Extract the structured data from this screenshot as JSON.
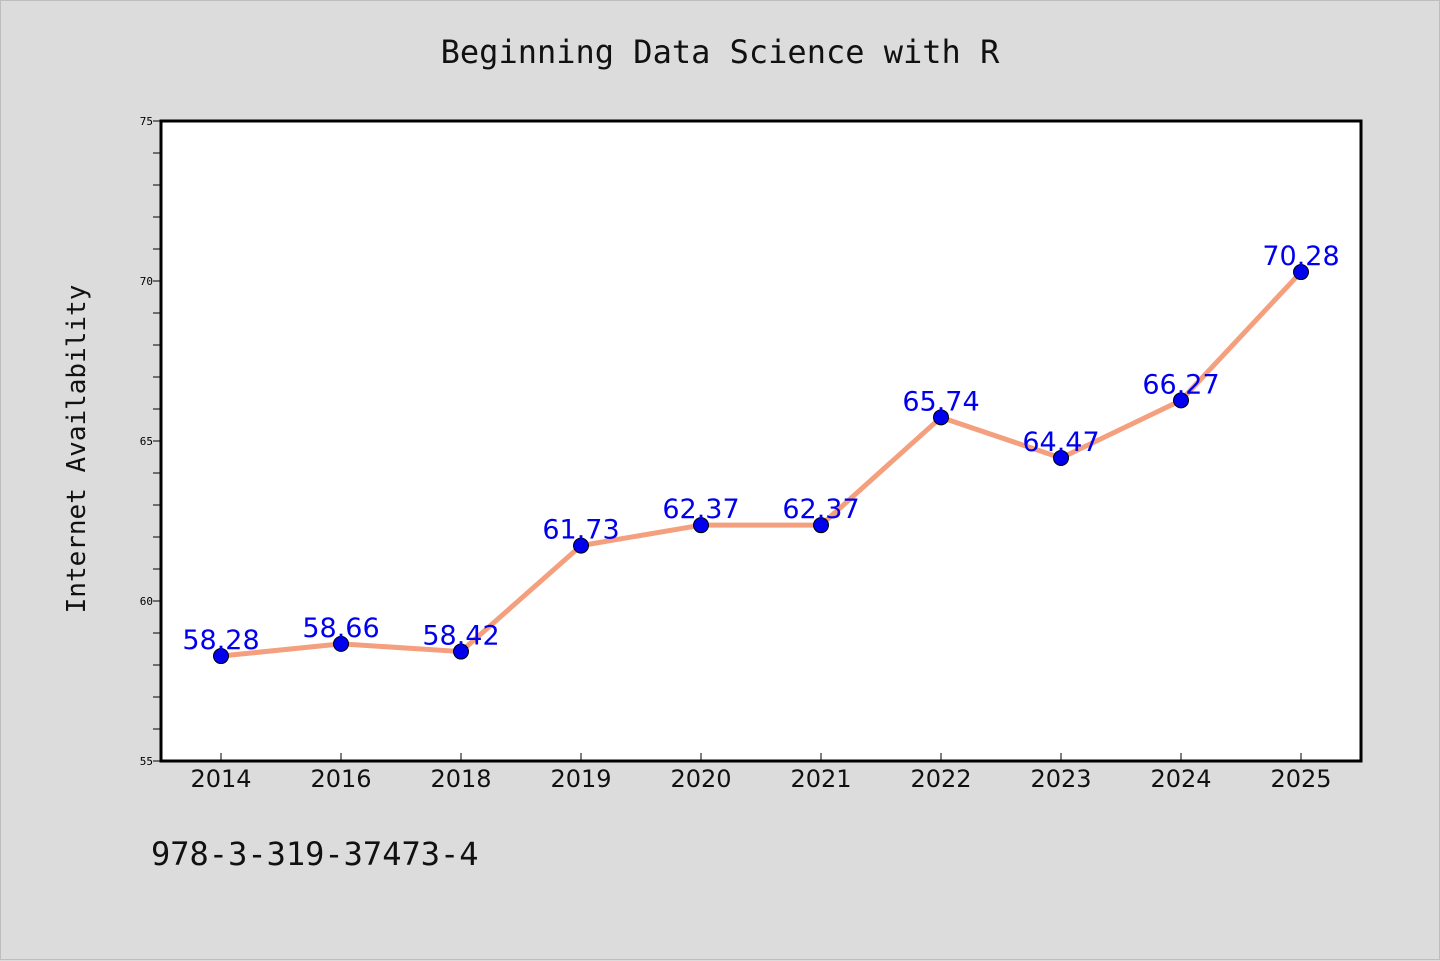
{
  "chart_data": {
    "type": "line",
    "title": "Beginning Data Science with R",
    "xlabel": "",
    "ylabel": "Internet Availability",
    "categories": [
      "2014",
      "2016",
      "2018",
      "2019",
      "2020",
      "2021",
      "2022",
      "2023",
      "2024",
      "2025"
    ],
    "series": [
      {
        "values": [
          58.28,
          58.66,
          58.42,
          61.73,
          62.37,
          62.37,
          65.74,
          64.47,
          66.27,
          70.28
        ]
      }
    ],
    "data_labels": [
      "58.28",
      "58.66",
      "58.42",
      "61.73",
      "62.37",
      "62.37",
      "65.74",
      "64.47",
      "66.27",
      "70.28"
    ],
    "ylim": [
      55,
      75
    ],
    "yticks": [
      "55",
      "60",
      "65",
      "70",
      "75"
    ],
    "grid": false,
    "colors": {
      "line": "#f4a07e",
      "marker": "#0000ee",
      "label": "#0000ee",
      "background": "#dcdcdc",
      "plot_background": "#ffffff"
    }
  },
  "footer_text": "978-3-319-37473-4"
}
